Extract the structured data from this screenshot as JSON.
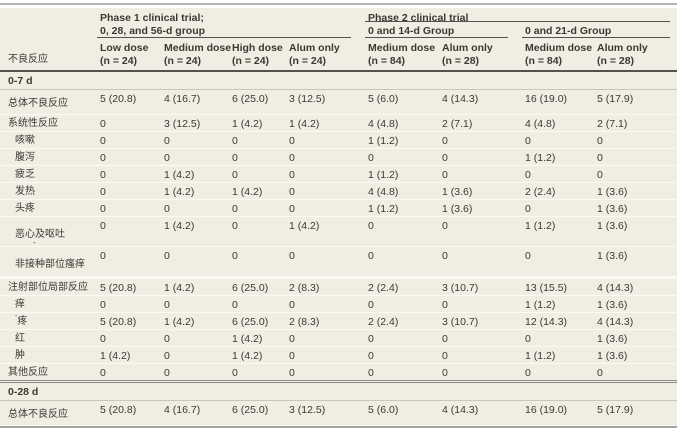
{
  "table": {
    "row_header": "不良反应",
    "phase1": {
      "title_line1": "Phase 1 clinical trial;",
      "title_line2": "0, 28, and 56-d group",
      "columns": [
        {
          "dose": "Low dose",
          "n": "(n = 24)"
        },
        {
          "dose": "Medium dose",
          "n": "(n = 24)"
        },
        {
          "dose": "High dose",
          "n": "(n = 24)"
        },
        {
          "dose": "Alum only",
          "n": "(n = 24)"
        }
      ]
    },
    "phase2": {
      "title": "Phase 2 clinical trial",
      "groups": [
        {
          "label": "0 and 14-d Group",
          "columns": [
            {
              "dose": "Medium dose",
              "n": "(n = 84)"
            },
            {
              "dose": "Alum only",
              "n": "(n = 28)"
            }
          ]
        },
        {
          "label": "0 and 21-d Group",
          "columns": [
            {
              "dose": "Medium dose",
              "n": "(n = 84)"
            },
            {
              "dose": "Alum only",
              "n": "(n = 28)"
            }
          ]
        }
      ]
    },
    "sections": [
      {
        "label": "0-7 d",
        "rows": [
          {
            "label": "总体不良反应",
            "indent": 0,
            "size": "lg",
            "values": [
              "5 (20.8)",
              "4 (16.7)",
              "6 (25.0)",
              "3 (12.5)",
              "5 (6.0)",
              "4 (14.3)",
              "16 (19.0)",
              "5 (17.9)"
            ]
          },
          {
            "label": "系统性反应",
            "indent": 0,
            "values": [
              "0",
              "3 (12.5)",
              "1 (4.2)",
              "1 (4.2)",
              "4 (4.8)",
              "2 (7.1)",
              "4 (4.8)",
              "2 (7.1)"
            ]
          },
          {
            "label": "咳嗽",
            "indent": 1,
            "values": [
              "0",
              "0",
              "0",
              "0",
              "1 (1.2)",
              "0",
              "0",
              "0"
            ]
          },
          {
            "label": "腹泻",
            "indent": 1,
            "values": [
              "0",
              "0",
              "0",
              "0",
              "0",
              "0",
              "1 (1.2)",
              "0"
            ]
          },
          {
            "label": "疲乏",
            "indent": 1,
            "values": [
              "0",
              "1 (4.2)",
              "0",
              "0",
              "1 (1.2)",
              "0",
              "0",
              "0"
            ]
          },
          {
            "label": "发热",
            "indent": 1,
            "values": [
              "0",
              "1 (4.2)",
              "1 (4.2)",
              "0",
              "4 (4.8)",
              "1 (3.6)",
              "2 (2.4)",
              "1 (3.6)"
            ]
          },
          {
            "label": "头疼",
            "indent": 1,
            "values": [
              "0",
              "0",
              "0",
              "0",
              "1 (1.2)",
              "1 (3.6)",
              "0",
              "1 (3.6)"
            ]
          },
          {
            "label": "恶心及呕吐",
            "indent": 1,
            "size": "xl",
            "mark_below": "-",
            "values": [
              "0",
              "1 (4.2)",
              "0",
              "1 (4.2)",
              "0",
              "0",
              "1 (1.2)",
              "1 (3.6)"
            ]
          },
          {
            "label": "非接种部位瘙痒",
            "indent": 1,
            "size": "xl",
            "values": [
              "0",
              "0",
              "0",
              "0",
              "0",
              "0",
              "0",
              "1 (3.6)"
            ]
          },
          {
            "label": "注射部位局部反应",
            "indent": 0,
            "gap_above": true,
            "values": [
              "5 (20.8)",
              "1 (4.2)",
              "6 (25.0)",
              "2 (8.3)",
              "2 (2.4)",
              "3 (10.7)",
              "13 (15.5)",
              "4 (14.3)"
            ]
          },
          {
            "label": "痒",
            "indent": 1,
            "values": [
              "0",
              "0",
              "0",
              "0",
              "0",
              "0",
              "1 (1.2)",
              "1 (3.6)"
            ]
          },
          {
            "label": "疼",
            "indent": 1,
            "mark_before": "ˉ",
            "values": [
              "5 (20.8)",
              "1 (4.2)",
              "6 (25.0)",
              "2 (8.3)",
              "2 (2.4)",
              "3 (10.7)",
              "12 (14.3)",
              "4 (14.3)"
            ]
          },
          {
            "label": "红",
            "indent": 1,
            "values": [
              "0",
              "0",
              "1 (4.2)",
              "0",
              "0",
              "0",
              "0",
              "1 (3.6)"
            ]
          },
          {
            "label": "肿",
            "indent": 1,
            "values": [
              "1 (4.2)",
              "0",
              "1 (4.2)",
              "0",
              "0",
              "0",
              "1 (1.2)",
              "1 (3.6)"
            ]
          },
          {
            "label": "其他反应",
            "indent": 0,
            "end_section": true,
            "values": [
              "0",
              "0",
              "0",
              "0",
              "0",
              "0",
              "0",
              "0"
            ]
          }
        ]
      },
      {
        "label": "0-28 d",
        "rows": [
          {
            "label": "总体不良反应",
            "indent": 0,
            "size": "lg",
            "values": [
              "5 (20.8)",
              "4 (16.7)",
              "6 (25.0)",
              "3 (12.5)",
              "5 (6.0)",
              "4 (14.3)",
              "16 (19.0)",
              "5 (17.9)"
            ]
          }
        ]
      }
    ],
    "colors": {
      "table_background": "#f0ede3",
      "header_rule": "#54524c",
      "section_rule": "#8e8c86",
      "text": "#3b3934"
    }
  }
}
